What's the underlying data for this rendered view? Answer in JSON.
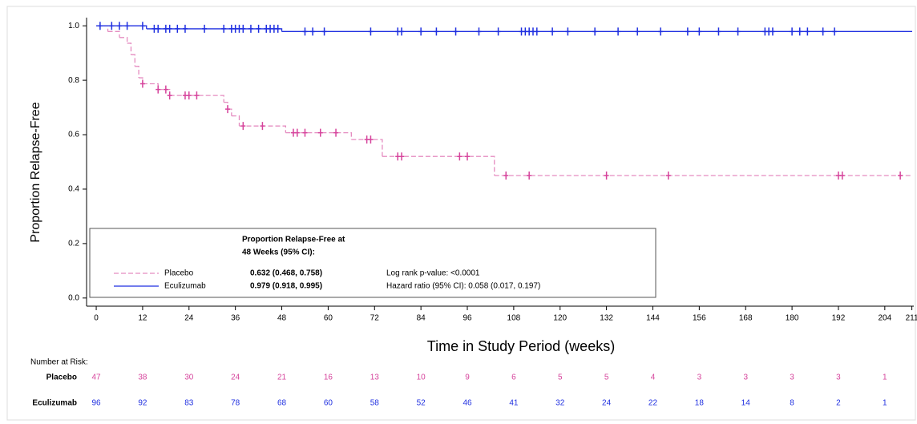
{
  "chart_data": {
    "type": "km",
    "xlabel": "Time in Study Period (weeks)",
    "ylabel": "Proportion Relapse-Free",
    "xlim": [
      -2.5,
      211.5
    ],
    "ylim": [
      -0.03,
      1.03
    ],
    "xticks": [
      0,
      12,
      24,
      36,
      48,
      60,
      72,
      84,
      96,
      108,
      120,
      132,
      144,
      156,
      168,
      180,
      192,
      204,
      211
    ],
    "yticks": [
      {
        "value": 0,
        "label": "0.0"
      },
      0.2,
      0.4,
      0.6,
      0.8,
      {
        "value": 1,
        "label": "1.0"
      }
    ],
    "series": [
      {
        "name": "Placebo",
        "color": "#d6449c",
        "line_color": "#e58cc0",
        "dashed": true,
        "times": [
          0,
          3,
          6,
          8,
          9,
          10,
          11,
          12,
          16,
          19,
          33,
          34,
          35,
          37,
          49,
          66,
          74,
          103
        ],
        "values": [
          1.0,
          0.979,
          0.957,
          0.936,
          0.894,
          0.851,
          0.809,
          0.787,
          0.766,
          0.744,
          0.719,
          0.694,
          0.669,
          0.632,
          0.607,
          0.582,
          0.52,
          0.45
        ],
        "censor_times": [
          12,
          16,
          18,
          19,
          23,
          24,
          26,
          34,
          38,
          43,
          51,
          52,
          54,
          58,
          62,
          70,
          71,
          78,
          79,
          94,
          96,
          106,
          112,
          132,
          148,
          192,
          193,
          208
        ],
        "censor_values": [
          0.787,
          0.766,
          0.766,
          0.744,
          0.744,
          0.744,
          0.744,
          0.694,
          0.632,
          0.632,
          0.607,
          0.607,
          0.607,
          0.607,
          0.607,
          0.582,
          0.582,
          0.52,
          0.52,
          0.52,
          0.52,
          0.45,
          0.45,
          0.45,
          0.45,
          0.45,
          0.45,
          0.45
        ],
        "at_risk": [
          47,
          38,
          30,
          24,
          21,
          16,
          13,
          10,
          9,
          6,
          5,
          5,
          4,
          3,
          3,
          3,
          3,
          1
        ],
        "estimate_48": "0.632 (0.468, 0.758)"
      },
      {
        "name": "Eculizumab",
        "color": "#1f2fe0",
        "line_color": "#1f2fe0",
        "dashed": false,
        "times": [
          0,
          13,
          48
        ],
        "values": [
          1.0,
          0.989,
          0.979
        ],
        "censor_times": [
          1,
          4,
          6,
          8,
          12,
          15,
          16,
          18,
          19,
          21,
          23,
          28,
          33,
          35,
          36,
          37,
          38,
          40,
          42,
          44,
          45,
          46,
          47,
          54,
          56,
          59,
          71,
          78,
          79,
          84,
          88,
          93,
          99,
          104,
          110,
          111,
          112,
          113,
          114,
          118,
          122,
          129,
          135,
          140,
          146,
          153,
          156,
          161,
          166,
          173,
          174,
          175,
          180,
          182,
          184,
          188,
          191
        ],
        "censor_values": [
          1.0,
          1.0,
          1.0,
          1.0,
          1.0,
          0.989,
          0.989,
          0.989,
          0.989,
          0.989,
          0.989,
          0.989,
          0.989,
          0.989,
          0.989,
          0.989,
          0.989,
          0.989,
          0.989,
          0.989,
          0.989,
          0.989,
          0.989,
          0.979,
          0.979,
          0.979,
          0.979,
          0.979,
          0.979,
          0.979,
          0.979,
          0.979,
          0.979,
          0.979,
          0.979,
          0.979,
          0.979,
          0.979,
          0.979,
          0.979,
          0.979,
          0.979,
          0.979,
          0.979,
          0.979,
          0.979,
          0.979,
          0.979,
          0.979,
          0.979,
          0.979,
          0.979,
          0.979,
          0.979,
          0.979,
          0.979,
          0.979
        ],
        "at_risk": [
          96,
          92,
          83,
          78,
          68,
          60,
          58,
          52,
          46,
          41,
          32,
          24,
          22,
          18,
          14,
          8,
          2,
          1
        ],
        "estimate_48": "0.979 (0.918, 0.995)"
      }
    ],
    "legend_header": [
      "Proportion Relapse-Free at",
      "48 Weeks (95% CI):"
    ],
    "annotations": [
      "Log rank p-value: <0.0001",
      "Hazard ratio (95% CI): 0.058 (0.017, 0.197)"
    ],
    "risk_title": "Number at Risk:"
  }
}
